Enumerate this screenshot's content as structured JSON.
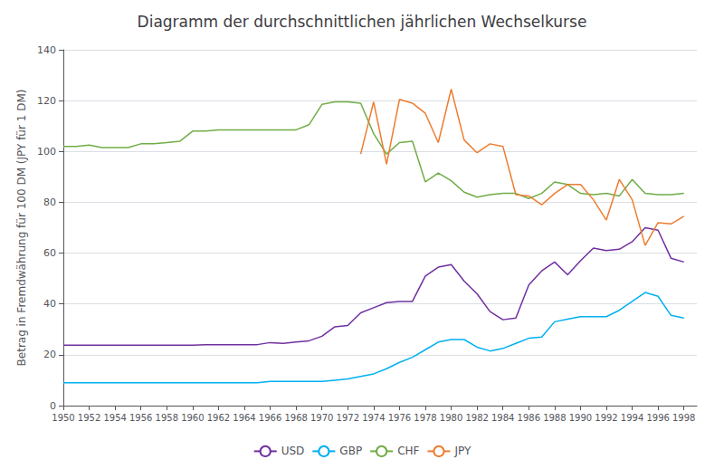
{
  "chart_data": {
    "type": "line",
    "title": "Diagramm der durchschnittlichen jährlichen Wechselkurse",
    "ylabel": "Betrag in Fremdwährung für 100 DM (JPY für 1 DM)",
    "x": [
      1950,
      1951,
      1952,
      1953,
      1954,
      1955,
      1956,
      1957,
      1958,
      1959,
      1960,
      1961,
      1962,
      1963,
      1964,
      1965,
      1966,
      1967,
      1968,
      1969,
      1970,
      1971,
      1972,
      1973,
      1974,
      1975,
      1976,
      1977,
      1978,
      1979,
      1980,
      1981,
      1982,
      1983,
      1984,
      1985,
      1986,
      1987,
      1988,
      1989,
      1990,
      1991,
      1992,
      1993,
      1994,
      1995,
      1996,
      1997,
      1998
    ],
    "xlim": [
      1950,
      1999
    ],
    "xticks": [
      1950,
      1952,
      1954,
      1956,
      1958,
      1960,
      1962,
      1964,
      1966,
      1968,
      1970,
      1972,
      1974,
      1976,
      1978,
      1980,
      1982,
      1984,
      1986,
      1988,
      1990,
      1992,
      1994,
      1996,
      1998
    ],
    "ylim": [
      0,
      140
    ],
    "yticks": [
      0,
      20,
      40,
      60,
      80,
      100,
      120,
      140
    ],
    "grid": true,
    "legend": "bottom",
    "series": [
      {
        "name": "USD",
        "color": "#7030A0",
        "values": [
          23.8,
          23.8,
          23.8,
          23.8,
          23.8,
          23.8,
          23.8,
          23.8,
          23.8,
          23.8,
          23.8,
          24.0,
          24.0,
          24.0,
          24.0,
          24.0,
          24.8,
          24.5,
          25.0,
          25.5,
          27.3,
          31.0,
          31.5,
          36.5,
          38.5,
          40.5,
          41.0,
          41.0,
          51.0,
          54.5,
          55.5,
          49.0,
          44.0,
          37.0,
          33.8,
          34.5,
          47.5,
          53.0,
          56.5,
          51.5,
          57.0,
          62.0,
          61.0,
          61.5,
          64.5,
          70.0,
          69.0,
          58.0,
          56.5
        ]
      },
      {
        "name": "GBP",
        "color": "#00B0F0",
        "values": [
          9.0,
          9.0,
          9.0,
          9.0,
          9.0,
          9.0,
          9.0,
          9.0,
          9.0,
          9.0,
          9.0,
          9.0,
          9.0,
          9.0,
          9.0,
          9.0,
          9.5,
          9.5,
          9.5,
          9.5,
          9.5,
          10.0,
          10.5,
          11.5,
          12.5,
          14.5,
          17.0,
          19.0,
          22.0,
          25.0,
          26.0,
          26.0,
          23.0,
          21.5,
          22.5,
          24.5,
          26.5,
          27.0,
          33.0,
          34.0,
          35.0,
          35.0,
          35.0,
          37.5,
          41.0,
          44.5,
          43.0,
          35.5,
          34.5
        ]
      },
      {
        "name": "CHF",
        "color": "#70AD47",
        "values": [
          102.0,
          102.0,
          102.5,
          101.5,
          101.5,
          101.5,
          103.0,
          103.0,
          103.5,
          104.0,
          108.0,
          108.0,
          108.5,
          108.5,
          108.5,
          108.5,
          108.5,
          108.5,
          108.5,
          110.5,
          118.5,
          119.5,
          119.5,
          119.0,
          107.0,
          99.0,
          103.5,
          104.0,
          88.0,
          91.5,
          88.5,
          84.0,
          82.0,
          83.0,
          83.5,
          83.5,
          81.5,
          83.5,
          88.0,
          87.0,
          83.5,
          83.0,
          83.5,
          82.5,
          89.0,
          83.5,
          83.0,
          83.0,
          83.5
        ]
      },
      {
        "name": "JPY",
        "color": "#ED7D31",
        "values": [
          null,
          null,
          null,
          null,
          null,
          null,
          null,
          null,
          null,
          null,
          null,
          null,
          null,
          null,
          null,
          null,
          null,
          null,
          null,
          null,
          null,
          null,
          null,
          99.0,
          119.5,
          95.0,
          120.5,
          119.0,
          115.0,
          103.5,
          124.5,
          104.5,
          99.5,
          103.0,
          102.0,
          83.0,
          82.5,
          79.0,
          83.5,
          87.0,
          87.0,
          81.0,
          73.0,
          89.0,
          81.0,
          63.0,
          72.0,
          71.5,
          74.5
        ]
      }
    ]
  }
}
